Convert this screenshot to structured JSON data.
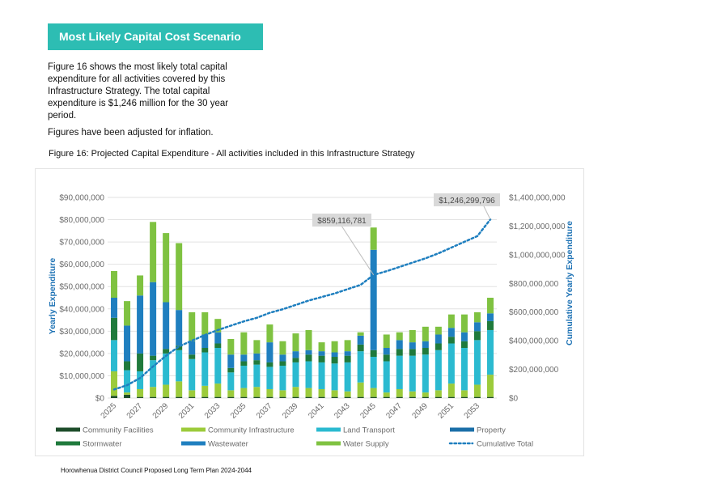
{
  "page": {
    "banner": "Most Likely Capital Cost Scenario",
    "intro": "Figure 16 shows the most likely total capital expenditure for all activities covered by this Infrastructure Strategy. The total capital expenditure is $1,246 million for the 30 year period.",
    "note": "Figures have been adjusted for inflation.",
    "figure_caption": "Figure 16: Projected Capital Expenditure - All activities included in this Infrastructure Strategy",
    "footer": "Horowhenua District Council Proposed Long Term Plan 2024-2044"
  },
  "colors": {
    "banner": "#2dbdb3",
    "Community Facilities": "#1e4d2b",
    "Community Infrastructure": "#9ccb3b",
    "Land Transport": "#2bbad0",
    "Property": "#1b6fa8",
    "Stormwater": "#1f7a3c",
    "Wastewater": "#1f7fbf",
    "Water Supply": "#7fc241",
    "Cumulative Total": "#1f7fbf"
  },
  "chart_data": {
    "type": "bar",
    "stacked": true,
    "x": [
      "2025",
      "2026",
      "2027",
      "2028",
      "2029",
      "2030",
      "2031",
      "2032",
      "2033",
      "2034",
      "2035",
      "2036",
      "2037",
      "2038",
      "2039",
      "2040",
      "2041",
      "2042",
      "2043",
      "2044",
      "2045",
      "2046",
      "2047",
      "2048",
      "2049",
      "2050",
      "2051",
      "2052",
      "2053",
      "2054"
    ],
    "x_tick_labels": [
      "2025",
      "2027",
      "2029",
      "2031",
      "2033",
      "2035",
      "2037",
      "2039",
      "2041",
      "2043",
      "2045",
      "2047",
      "2049",
      "2051",
      "2053"
    ],
    "ylabel": "Yearly Expenditure",
    "y2label": "Cumulative Yearly Expenditure",
    "yticks": [
      "$0",
      "$10,000,000",
      "$20,000,000",
      "$30,000,000",
      "$40,000,000",
      "$50,000,000",
      "$60,000,000",
      "$70,000,000",
      "$80,000,000",
      "$90,000,000"
    ],
    "y2ticks": [
      "$0",
      "$200,000,000",
      "$400,000,000",
      "$600,000,000",
      "$800,000,000",
      "$1,000,000,000",
      "$1,200,000,000",
      "$1,400,000,000"
    ],
    "ylim": [
      0,
      90000000
    ],
    "y2lim": [
      0,
      1400000000
    ],
    "series": [
      {
        "name": "Community Facilities",
        "values": [
          1000000,
          1500000,
          500000,
          500000,
          500000,
          500000,
          500000,
          500000,
          500000,
          500000,
          500000,
          500000,
          500000,
          500000,
          500000,
          500000,
          500000,
          500000,
          500000,
          500000,
          500000,
          500000,
          500000,
          500000,
          500000,
          500000,
          500000,
          500000,
          500000,
          500000
        ]
      },
      {
        "name": "Community Infrastructure",
        "values": [
          11000000,
          1000000,
          3500000,
          4500000,
          5500000,
          7000000,
          3000000,
          5000000,
          6000000,
          3000000,
          4000000,
          4500000,
          3500000,
          3000000,
          4500000,
          4000000,
          3500000,
          3000000,
          2500000,
          6500000,
          4000000,
          2000000,
          3500000,
          2500000,
          2000000,
          3000000,
          6000000,
          3000000,
          5500000,
          10000000
        ]
      },
      {
        "name": "Land Transport",
        "values": [
          14000000,
          10000000,
          8000000,
          12000000,
          14000000,
          14000000,
          14000000,
          15000000,
          16000000,
          8000000,
          10000000,
          10000000,
          10000000,
          11000000,
          11000000,
          12000000,
          12000000,
          12000000,
          13000000,
          14000000,
          14000000,
          14000000,
          15000000,
          16000000,
          17000000,
          18000000,
          18000000,
          19000000,
          20000000,
          20000000
        ]
      },
      {
        "name": "Property",
        "values": [
          0,
          0,
          0,
          0,
          0,
          0,
          0,
          0,
          0,
          0,
          0,
          0,
          0,
          0,
          0,
          0,
          0,
          0,
          0,
          0,
          0,
          0,
          0,
          0,
          0,
          0,
          0,
          0,
          0,
          0
        ]
      },
      {
        "name": "Stormwater",
        "values": [
          10000000,
          4000000,
          8000000,
          2000000,
          2000000,
          2000000,
          2000000,
          2000000,
          2000000,
          2000000,
          2000000,
          2000000,
          2000000,
          2000000,
          2000000,
          3000000,
          3000000,
          3000000,
          3000000,
          3000000,
          3000000,
          3000000,
          3000000,
          3000000,
          3000000,
          3000000,
          3000000,
          3000000,
          4000000,
          4000000
        ]
      },
      {
        "name": "Wastewater",
        "values": [
          9000000,
          16000000,
          26000000,
          33000000,
          21000000,
          16000000,
          6000000,
          6000000,
          5000000,
          6000000,
          3000000,
          3000000,
          9000000,
          3000000,
          3000000,
          2000000,
          2000000,
          2000000,
          2000000,
          4000000,
          45000000,
          3000000,
          4000000,
          3000000,
          3000000,
          4000000,
          4000000,
          4000000,
          4000000,
          3500000
        ]
      },
      {
        "name": "Water Supply",
        "values": [
          12000000,
          11000000,
          9000000,
          27000000,
          31000000,
          30000000,
          13000000,
          10000000,
          6000000,
          7000000,
          10000000,
          6000000,
          8000000,
          6000000,
          8000000,
          9000000,
          4000000,
          5000000,
          5000000,
          1500000,
          10000000,
          6000000,
          3500000,
          5500000,
          6500000,
          3500000,
          6000000,
          8000000,
          4500000,
          7000000
        ]
      }
    ],
    "cumulative": {
      "name": "Cumulative Total",
      "values": [
        60000000,
        90000000,
        140000000,
        220000000,
        295000000,
        360000000,
        400000000,
        440000000,
        475000000,
        505000000,
        535000000,
        560000000,
        595000000,
        620000000,
        650000000,
        680000000,
        705000000,
        730000000,
        760000000,
        790000000,
        859116781,
        885000000,
        915000000,
        945000000,
        975000000,
        1010000000,
        1050000000,
        1090000000,
        1130000000,
        1246299796
      ]
    },
    "annotations": [
      "$859,116,781",
      "$1,246,299,796"
    ],
    "grid": true,
    "legend_placement": "bottom"
  }
}
